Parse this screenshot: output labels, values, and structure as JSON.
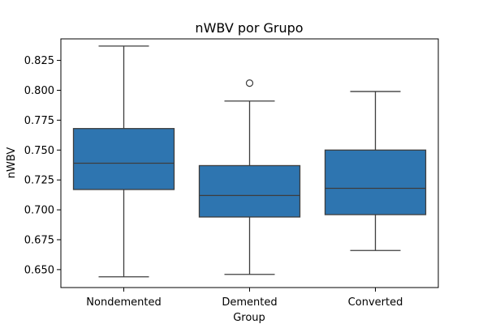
{
  "chart_data": {
    "type": "box",
    "title": "nWBV por Grupo",
    "xlabel": "Group",
    "ylabel": "nWBV",
    "ylim": [
      0.635,
      0.843
    ],
    "yticks": [
      0.65,
      0.675,
      0.7,
      0.725,
      0.75,
      0.775,
      0.8,
      0.825
    ],
    "ytick_labels": [
      "0.650",
      "0.675",
      "0.700",
      "0.725",
      "0.750",
      "0.775",
      "0.800",
      "0.825"
    ],
    "grid": false,
    "box_color": "#2e75b0",
    "line_color": "#3d3d3d",
    "categories": [
      "Nondemented",
      "Demented",
      "Converted"
    ],
    "boxes": [
      {
        "category": "Nondemented",
        "whisker_low": 0.644,
        "q1": 0.717,
        "median": 0.739,
        "q3": 0.768,
        "whisker_high": 0.837,
        "outliers": []
      },
      {
        "category": "Demented",
        "whisker_low": 0.646,
        "q1": 0.694,
        "median": 0.712,
        "q3": 0.737,
        "whisker_high": 0.791,
        "outliers": [
          0.806
        ]
      },
      {
        "category": "Converted",
        "whisker_low": 0.666,
        "q1": 0.696,
        "median": 0.718,
        "q3": 0.75,
        "whisker_high": 0.799,
        "outliers": []
      }
    ]
  }
}
